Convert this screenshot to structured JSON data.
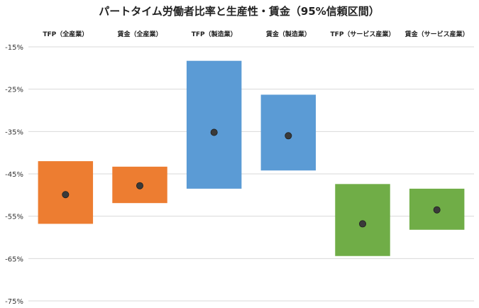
{
  "chart_data": {
    "type": "range-bar",
    "title": "パートタイム労働者比率と生産性・賃金（95%信頼区間）",
    "categories": [
      "TFP（全産業）",
      "賃金（全産業）",
      "TFP（製造業）",
      "賃金（製造業）",
      "TFP（サービス産業）",
      "賃金（サービス産業）"
    ],
    "ylim": [
      -75,
      -15
    ],
    "yticks": [
      -15,
      -25,
      -35,
      -45,
      -55,
      -65,
      -75
    ],
    "ytick_labels": [
      "-15%",
      "-25%",
      "-35%",
      "-45%",
      "-55%",
      "-65%",
      "-75%"
    ],
    "grid": true,
    "legend": "none",
    "series": [
      {
        "values": [
          {
            "low": -56.8,
            "high": -42.0,
            "point": -49.9
          },
          {
            "low": -51.9,
            "high": -43.3,
            "point": -47.8
          },
          {
            "low": -48.5,
            "high": -18.3,
            "point": -35.2
          },
          {
            "low": -44.2,
            "high": -26.3,
            "point": -36.0
          },
          {
            "low": -64.4,
            "high": -47.4,
            "point": -56.8
          },
          {
            "low": -58.2,
            "high": -48.5,
            "point": -53.5
          }
        ],
        "colors": [
          "#ED7D31",
          "#ED7D31",
          "#5B9BD5",
          "#5B9BD5",
          "#70AD47",
          "#70AD47"
        ]
      }
    ],
    "marker_color": "#3a3a3a"
  }
}
